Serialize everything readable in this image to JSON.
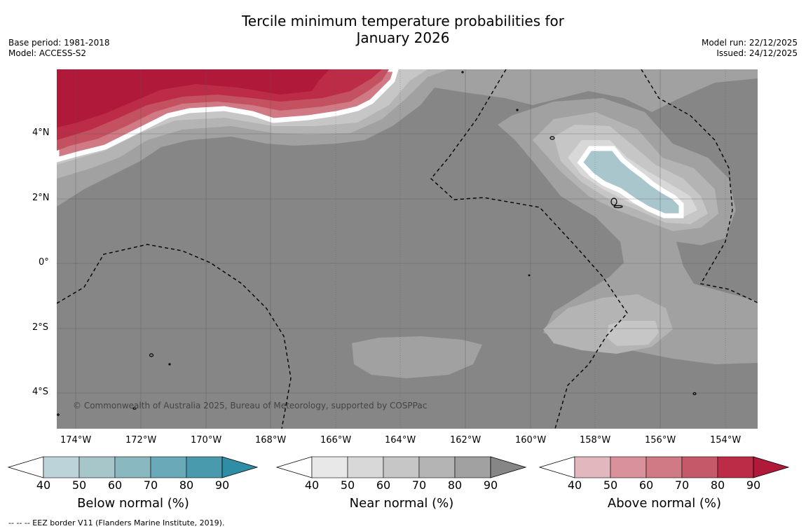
{
  "title": {
    "line1": "Tercile minimum temperature probabilities for",
    "line2": "January 2026"
  },
  "meta": {
    "base_period": "Base period: 1981-2018",
    "model": "Model: ACCESS-S2",
    "model_run": "Model run: 22/12/2025",
    "issued": "Issued: 24/12/2025"
  },
  "map": {
    "lon_labels": [
      "174°W",
      "172°W",
      "170°W",
      "168°W",
      "166°W",
      "164°W",
      "162°W",
      "160°W",
      "158°W",
      "156°W",
      "154°W"
    ],
    "lat_labels": [
      "4°N",
      "2°N",
      "0°",
      "2°S",
      "4°S"
    ],
    "copyright": "© Commonwealth of Australia 2025, Bureau of Meteorology, supported by COSPPac",
    "colors": {
      "ocean_base": "#868686",
      "near_90": "#868686",
      "near_80": "#a1a1a1",
      "near_70": "#b4b4b4",
      "near_60": "#c6c6c6",
      "near_50": "#d8d8d8",
      "below_40": "#a9c6cc",
      "above_90": "#b0193a",
      "above_80": "#bd2c47",
      "above_70": "#c4515f",
      "above_60": "#cf7a84"
    }
  },
  "colorbars": [
    {
      "label": "Below normal (%)",
      "ticks": [
        "40",
        "50",
        "60",
        "70",
        "80",
        "90"
      ],
      "colors": [
        "#bcd3da",
        "#a6c6ca",
        "#8ab8c0",
        "#6aaab8",
        "#4a9aae"
      ],
      "arrow_color": "#2f8ea6"
    },
    {
      "label": "Near normal (%)",
      "ticks": [
        "40",
        "50",
        "60",
        "70",
        "80",
        "90"
      ],
      "colors": [
        "#e8e8e8",
        "#d8d8d8",
        "#c6c6c6",
        "#b4b4b4",
        "#a1a1a1"
      ],
      "arrow_color": "#868686"
    },
    {
      "label": "Above normal (%)",
      "ticks": [
        "40",
        "50",
        "60",
        "70",
        "80",
        "90"
      ],
      "colors": [
        "#e2b8be",
        "#d9919b",
        "#cf7a84",
        "#c5596a",
        "#bd2c47"
      ],
      "arrow_color": "#b0193a"
    }
  ],
  "footnote": "--  --  -- EEZ border V11 (Flanders Marine Institute, 2019)."
}
